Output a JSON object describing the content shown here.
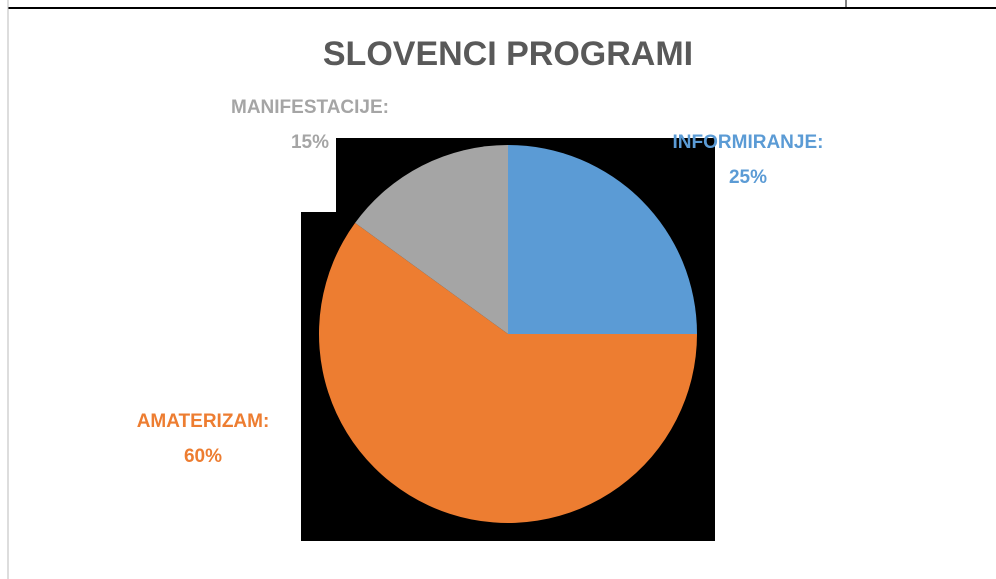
{
  "chart_data": {
    "type": "pie",
    "title": "SLOVENCI PROGRAMI",
    "categories": [
      "INFORMIRANJE:",
      "AMATERIZAM:",
      "MANIFESTACIJE:"
    ],
    "values": [
      25,
      60,
      15
    ],
    "value_labels": [
      "25%",
      "60%",
      "15%"
    ],
    "colors": [
      "#5b9bd5",
      "#ed7d31",
      "#a5a5a5"
    ]
  }
}
